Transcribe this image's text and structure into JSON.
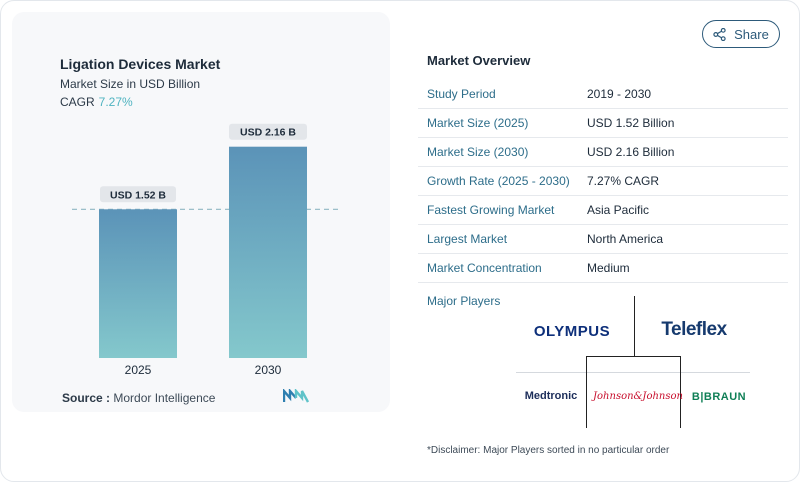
{
  "share": {
    "label": "Share"
  },
  "chart_data": {
    "type": "bar",
    "title": "Ligation Devices Market",
    "subtitle": "Market Size in USD Billion",
    "cagr_label": "CAGR",
    "cagr_value": "7.27%",
    "categories": [
      "2025",
      "2030"
    ],
    "values": [
      1.52,
      2.16
    ],
    "data_labels": [
      "USD 1.52 B",
      "USD 2.16 B"
    ],
    "ylim": [
      0,
      2.3
    ],
    "reference_line": 1.52,
    "colors": {
      "bar_top": "#5b93b8",
      "bar_bottom": "#84c8cc",
      "label_bg": "#e3e6ea",
      "dash": "#8fb7c4"
    }
  },
  "source": {
    "label": "Source :",
    "value": "Mordor Intelligence"
  },
  "overview": {
    "title": "Market Overview",
    "rows": [
      {
        "key": "Study Period",
        "value": "2019 - 2030"
      },
      {
        "key": "Market Size (2025)",
        "value": "USD 1.52 Billion"
      },
      {
        "key": "Market Size (2030)",
        "value": "USD 2.16 Billion"
      },
      {
        "key": "Growth Rate (2025 - 2030)",
        "value": "7.27% CAGR"
      },
      {
        "key": "Fastest Growing Market",
        "value": "Asia Pacific"
      },
      {
        "key": "Largest Market",
        "value": "North America"
      },
      {
        "key": "Market Concentration",
        "value": "Medium"
      }
    ]
  },
  "players": {
    "title": "Major Players",
    "logos": [
      "OLYMPUS",
      "Teleflex",
      "Medtronic",
      "Johnson&Johnson",
      "B|BRAUN"
    ]
  },
  "disclaimer": "*Disclaimer: Major Players sorted in no particular order"
}
